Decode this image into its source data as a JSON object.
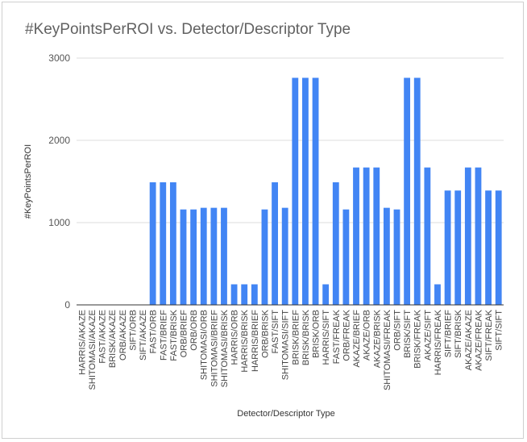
{
  "chart_data": {
    "type": "bar",
    "title": "#KeyPointsPerROI vs. Detector/Descriptor Type",
    "xlabel": "Detector/Descriptor Type",
    "ylabel": "#KeyPointsPerROI",
    "ylim": [
      0,
      3000
    ],
    "yticks": [
      0,
      1000,
      2000,
      3000
    ],
    "grid": true,
    "legend": "none",
    "bar_color": "#4285f4",
    "categories": [
      "HARRIS/AKAZE",
      "SHITOMASI/AKAZE",
      "FAST/AKAZE",
      "BRISK/AKAZE",
      "ORB/AKAZE",
      "SIFT/ORB",
      "SIFT/AKAZE",
      "FAST/ORB",
      "FAST/BRIEF",
      "FAST/BRISK",
      "ORB/BRIEF",
      "ORB/ORB",
      "SHITOMASI/ORB",
      "SHITOMASI/BRIEF",
      "SHITOMASI/BRISK",
      "HARRIS/ORB",
      "HARRIS/BRISK",
      "HARRIS/BRIEF",
      "ORB/BRISK",
      "FAST/SIFT",
      "SHITOMASI/SIFT",
      "BRISK/BRIEF",
      "BRISK/BRISK",
      "BRISK/ORB",
      "HARRIS/SIFT",
      "FAST/FREAK",
      "ORB/FREAK",
      "AKAZE/BRIEF",
      "AKAZE/ORB",
      "AKAZE/BRISK",
      "SHITOMASI/FREAK",
      "ORB/SIFT",
      "BRISK/SIFT",
      "BRISK/FREAK",
      "AKAZE/SIFT",
      "HARRIS/FREAK",
      "SIFT/BRIEF",
      "SIFT/BRISK",
      "AKAZE/AKAZE",
      "AKAZE/FREAK",
      "SIFT/FREAK",
      "SIFT/SIFT"
    ],
    "values": [
      0,
      0,
      0,
      0,
      0,
      0,
      0,
      1490,
      1490,
      1490,
      1160,
      1160,
      1180,
      1180,
      1180,
      250,
      250,
      250,
      1160,
      1490,
      1180,
      2760,
      2760,
      2760,
      250,
      1490,
      1160,
      1670,
      1670,
      1670,
      1180,
      1160,
      2760,
      2760,
      1670,
      250,
      1390,
      1390,
      1670,
      1670,
      1390,
      1390
    ]
  }
}
